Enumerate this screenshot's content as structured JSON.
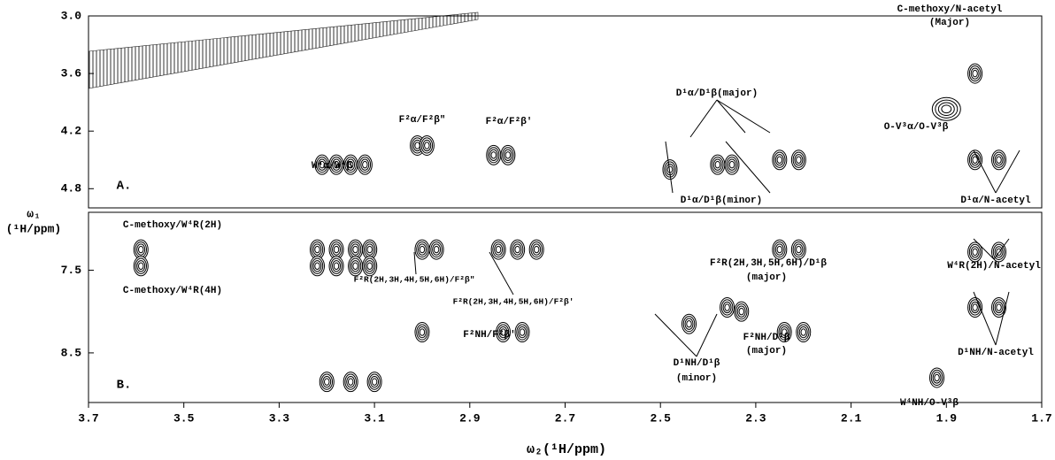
{
  "chart_data": [
    {
      "type": "scatter",
      "label": "A.",
      "xlim": [
        3.7,
        1.7
      ],
      "ylim": [
        3.0,
        5.0
      ],
      "yticks": [
        {
          "value": 3.0,
          "label": "3.0"
        },
        3.6,
        4.2,
        4.8
      ],
      "peaks": {
        "x": [
          3.21,
          3.18,
          3.15,
          3.12,
          3.01,
          2.99,
          2.85,
          2.82,
          2.48,
          2.38,
          2.35,
          2.25,
          2.21,
          1.9,
          1.84,
          1.84,
          1.79
        ],
        "y": [
          4.55,
          4.55,
          4.55,
          4.55,
          4.35,
          4.35,
          4.45,
          4.45,
          4.6,
          4.55,
          4.55,
          4.5,
          4.5,
          3.97,
          3.6,
          4.5,
          4.5
        ]
      },
      "annotations": [
        "C-methoxy/N-acetyl",
        "(Major)",
        "D¹α/D¹β(major)",
        "F²α/F²β″",
        "F²α/F²β′",
        "O-V³α/O-V³β",
        "W⁴α/W⁴β",
        "A.",
        "D¹α/D¹β(minor)",
        "D¹α/N-acetyl"
      ]
    },
    {
      "type": "scatter",
      "label": "B.",
      "xlim": [
        3.7,
        1.7
      ],
      "ylim": [
        6.8,
        9.1
      ],
      "xticks": [
        3.7,
        3.5,
        3.3,
        3.1,
        2.9,
        2.7,
        2.5,
        2.3,
        2.1,
        1.9,
        1.7
      ],
      "yticks": [
        7.5,
        8.5
      ],
      "x_label": "ω₂(¹H/ppm)",
      "y_label": [
        "ω₁",
        "(¹H/ppm)"
      ],
      "peaks": {
        "x": [
          3.59,
          3.59,
          3.22,
          3.18,
          3.14,
          3.11,
          3.22,
          3.18,
          3.14,
          3.11,
          3.0,
          2.97,
          2.84,
          2.8,
          2.76,
          2.83,
          2.79,
          3.0,
          2.44,
          2.36,
          2.33,
          2.25,
          2.21,
          2.24,
          2.2,
          3.2,
          3.15,
          3.1,
          1.84,
          1.79,
          1.84,
          1.79,
          1.92
        ],
        "y": [
          7.25,
          7.45,
          7.25,
          7.25,
          7.25,
          7.25,
          7.45,
          7.45,
          7.45,
          7.45,
          7.25,
          7.25,
          7.25,
          7.25,
          7.25,
          8.25,
          8.25,
          8.25,
          8.15,
          7.95,
          8.0,
          7.25,
          7.25,
          8.25,
          8.25,
          8.85,
          8.85,
          8.85,
          7.28,
          7.28,
          7.95,
          7.95,
          8.8
        ]
      },
      "annotations": [
        "C-methoxy/W⁴R(2H)",
        "C-methoxy/W⁴R(4H)",
        "F²R(2H,3H,4H,5H,6H)/F²β″",
        "F²R(2H,3H,4H,5H,6H)/F²β′",
        "F²R(2H,3H,5H,6H)/D¹β",
        "(major)",
        "W⁴R(2H)/N-acetyl",
        "F²NH/F²β′",
        "D¹NH/N-acetyl",
        "F²NH/D¹β",
        "(major)",
        "D¹NH/D¹β",
        "(minor)",
        "B.",
        "W⁴NH/O-V³β"
      ]
    }
  ]
}
